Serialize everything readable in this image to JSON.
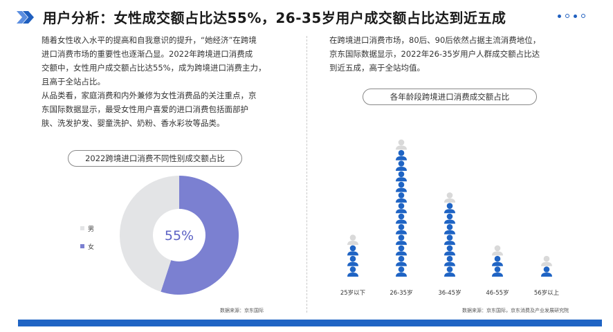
{
  "header": {
    "title": "用户分析：女性成交额占比达55%，26-35岁用户成交额占比达到近五成"
  },
  "left_text": {
    "lines": [
      "随着女性收入水平的提高和自我意识的提升，“她经济”在跨境",
      "进口消费市场的重要性也逐渐凸显。2022年跨境进口消费成",
      "交额中，女性用户成交额占比达55%，成为跨境进口消费主力，",
      "且高于全站占比。",
      "从品类看，家庭消费和内外兼修为女性消费品的关注重点，京",
      "东国际数据显示，最受女性用户喜爱的进口消费包括面部护",
      "肤、洗发护发、婴童洗护、奶粉、香水彩妆等品类。"
    ]
  },
  "right_text": {
    "lines": [
      "在跨境进口消费市场，80后、90后依然占据主流消费地位，",
      "京东国际数据显示，2022年26-35岁用户人群成交额占比达",
      "到近五成，高于全站均值。"
    ]
  },
  "chart_data": [
    {
      "type": "pie",
      "title": "2022跨境进口消费不同性别成交额占比",
      "labels": [
        "男",
        "女"
      ],
      "values": [
        45,
        55
      ],
      "colors": [
        "#e3e4e6",
        "#7b80d1"
      ],
      "center_label": "55%",
      "legend_position": "left",
      "source": "数据来源：京东国际"
    },
    {
      "type": "bar",
      "title": "各年龄段跨境进口消费成交额占比",
      "categories": [
        "25岁以下",
        "26-35岁",
        "36-45岁",
        "46-55岁",
        "56岁以上"
      ],
      "values": [
        3.5,
        12.2,
        7.4,
        2.7,
        1.2
      ],
      "style": "pictograph",
      "icon": "person-icon",
      "color": "#1f64c4",
      "partial_color": "#d9d9d9",
      "source": "数据来源：京东国际，京东消费及产业发展研究院"
    }
  ]
}
